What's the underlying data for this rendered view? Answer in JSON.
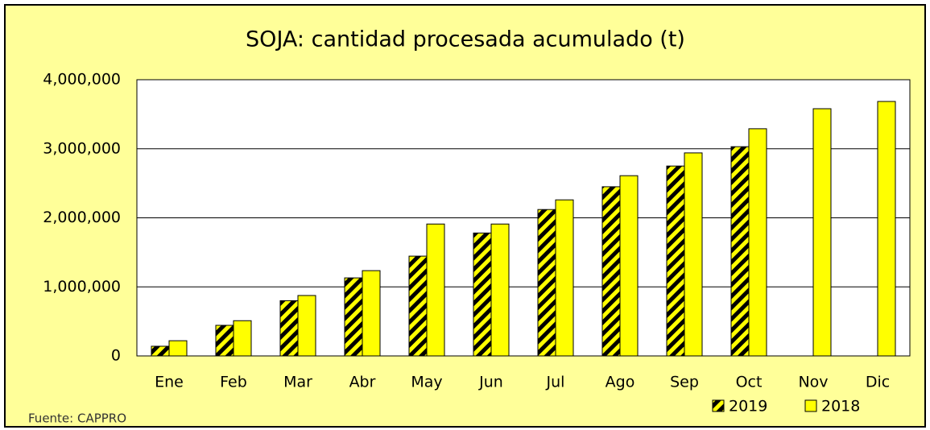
{
  "chart_data": {
    "type": "bar",
    "title": "SOJA: cantidad procesada acumulado (t)",
    "source": "Fuente: CAPPRO",
    "categories": [
      "Ene",
      "Feb",
      "Mar",
      "Abr",
      "May",
      "Jun",
      "Jul",
      "Ago",
      "Sep",
      "Oct",
      "Nov",
      "Dic"
    ],
    "series": [
      {
        "name": "2019",
        "color": "hatch",
        "values": [
          140000,
          443000,
          800000,
          1130000,
          1445000,
          1780000,
          2120000,
          2450000,
          2750000,
          3030000,
          null,
          null
        ]
      },
      {
        "name": "2018",
        "color": "#ffff00",
        "values": [
          220000,
          510000,
          875000,
          1235000,
          1910000,
          1910000,
          2260000,
          2610000,
          2940000,
          3290000,
          3580000,
          3685000
        ]
      }
    ],
    "ylim": [
      0,
      4000000
    ],
    "yticks": [
      0,
      {
        "value": 1000000,
        "label": "1,000,000"
      },
      {
        "value": 2000000,
        "label": "2,000,000"
      },
      {
        "value": 3000000,
        "label": "3,000,000"
      },
      {
        "value": 4000000,
        "label": "4,000,000"
      }
    ],
    "grid": true,
    "legend": "bottom-right"
  }
}
